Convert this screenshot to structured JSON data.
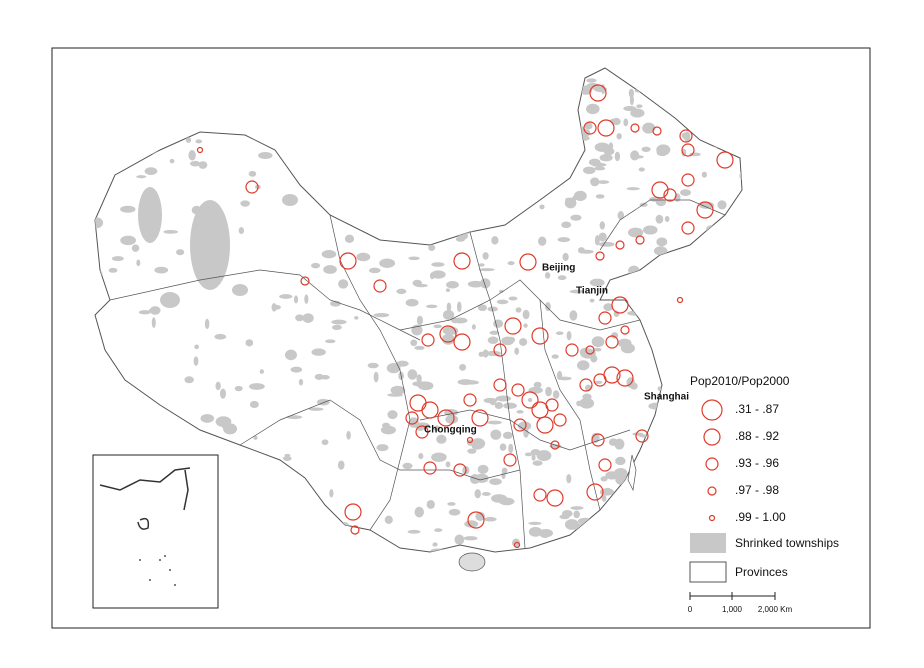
{
  "map": {
    "cities": [
      "Beijing",
      "Tianjin",
      "Shanghai",
      "Chongqing"
    ],
    "legend": {
      "title": "Pop2010/Pop2000",
      "classes": [
        ".31 - .87",
        ".88 - .92",
        ".93 - .96",
        ".97 - .98",
        ".99 - 1.00"
      ],
      "townships": "Shrinked townships",
      "provinces": "Provinces"
    },
    "scale": {
      "labels": [
        "0",
        "1,000",
        "2,000 Km"
      ]
    }
  }
}
